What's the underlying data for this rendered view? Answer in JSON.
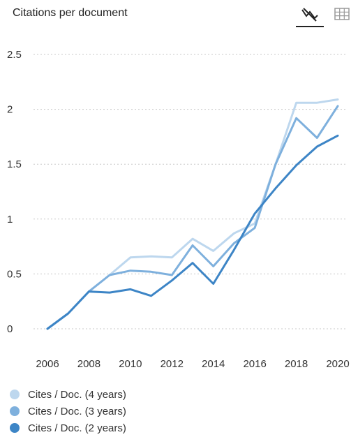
{
  "header": {
    "title": "Citations per document",
    "tools": {
      "line_icon": "line-chart-icon",
      "table_icon": "table-grid-icon"
    }
  },
  "chart_data": {
    "type": "line",
    "title": "Citations per document",
    "xlabel": "",
    "ylabel": "",
    "x": [
      2006,
      2007,
      2008,
      2009,
      2010,
      2011,
      2012,
      2013,
      2014,
      2015,
      2016,
      2017,
      2018,
      2019,
      2020
    ],
    "xlim": [
      2006,
      2020
    ],
    "ylim": [
      0,
      2.5
    ],
    "x_ticks": [
      "2006",
      "2008",
      "2010",
      "2012",
      "2014",
      "2016",
      "2018",
      "2020"
    ],
    "y_ticks": [
      "0",
      "0.5",
      "1",
      "1.5",
      "2",
      "2.5"
    ],
    "grid": "horizontal dotted",
    "legend_position": "bottom-left",
    "series": [
      {
        "name": "Cites / Doc. (4 years)",
        "color": "#bdd7ee",
        "values": [
          0,
          0.14,
          0.34,
          0.49,
          0.65,
          0.66,
          0.65,
          0.82,
          0.71,
          0.87,
          0.96,
          1.5,
          2.06,
          2.06,
          2.09
        ]
      },
      {
        "name": "Cites / Doc. (3 years)",
        "color": "#7eb0dd",
        "values": [
          0,
          0.14,
          0.34,
          0.49,
          0.53,
          0.52,
          0.49,
          0.76,
          0.57,
          0.78,
          0.92,
          1.5,
          1.92,
          1.74,
          2.03
        ]
      },
      {
        "name": "Cites / Doc. (2 years)",
        "color": "#3d85c6",
        "values": [
          0,
          0.14,
          0.34,
          0.33,
          0.36,
          0.3,
          0.44,
          0.6,
          0.41,
          0.72,
          1.05,
          1.28,
          1.49,
          1.66,
          1.76
        ]
      }
    ]
  }
}
